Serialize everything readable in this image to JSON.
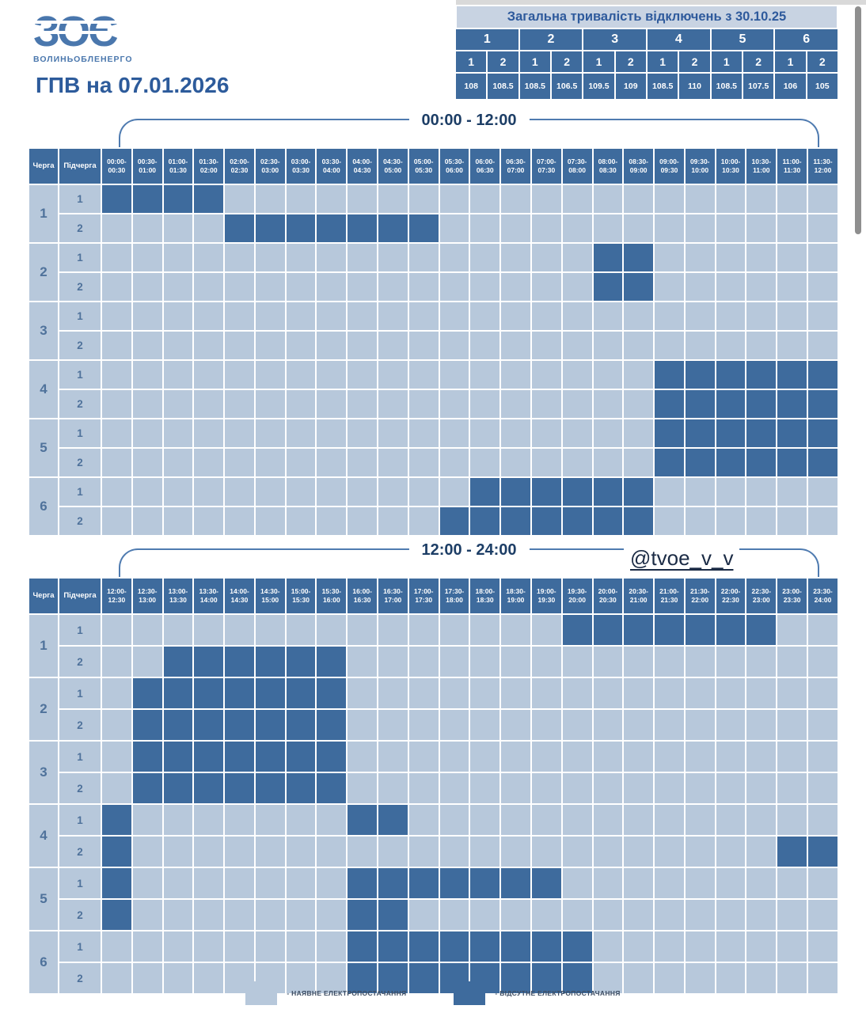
{
  "page": {
    "title": "ГПВ на 07.01.2026"
  },
  "logo": {
    "mark": "ЗОЄ",
    "company": "ВОЛИНЬОБЛЕНЕРГО"
  },
  "summary": {
    "title": "Загальна тривалість відключень з 30.10.25",
    "queues": [
      "1",
      "2",
      "3",
      "4",
      "5",
      "6"
    ],
    "subqueues": [
      "1",
      "2",
      "1",
      "2",
      "1",
      "2",
      "1",
      "2",
      "1",
      "2",
      "1",
      "2"
    ],
    "values": [
      "108",
      "108.5",
      "108.5",
      "106.5",
      "109.5",
      "109",
      "108.5",
      "110",
      "108.5",
      "107.5",
      "106",
      "105"
    ]
  },
  "watermark": "@tvoe_v_v",
  "schedule_headers": {
    "queue": "Черга",
    "subqueue": "Підчерга"
  },
  "tables": [
    {
      "title": "00:00 - 12:00",
      "slots": [
        "00:00-00:30",
        "00:30-01:00",
        "01:00-01:30",
        "01:30-02:00",
        "02:00-02:30",
        "02:30-03:00",
        "03:00-03:30",
        "03:30-04:00",
        "04:00-04:30",
        "04:30-05:00",
        "05:00-05:30",
        "05:30-06:00",
        "06:00-06:30",
        "06:30-07:00",
        "07:00-07:30",
        "07:30-08:00",
        "08:00-08:30",
        "08:30-09:00",
        "09:00-09:30",
        "09:30-10:00",
        "10:00-10:30",
        "10:30-11:00",
        "11:00-11:30",
        "11:30-12:00"
      ],
      "rows": [
        {
          "queue": "1",
          "sub": "1",
          "off": [
            0,
            1,
            2,
            3
          ]
        },
        {
          "queue": "1",
          "sub": "2",
          "off": [
            4,
            5,
            6,
            7,
            8,
            9,
            10
          ]
        },
        {
          "queue": "2",
          "sub": "1",
          "off": [
            16,
            17
          ]
        },
        {
          "queue": "2",
          "sub": "2",
          "off": [
            16,
            17
          ]
        },
        {
          "queue": "3",
          "sub": "1",
          "off": []
        },
        {
          "queue": "3",
          "sub": "2",
          "off": []
        },
        {
          "queue": "4",
          "sub": "1",
          "off": [
            18,
            19,
            20,
            21,
            22,
            23
          ]
        },
        {
          "queue": "4",
          "sub": "2",
          "off": [
            18,
            19,
            20,
            21,
            22,
            23
          ]
        },
        {
          "queue": "5",
          "sub": "1",
          "off": [
            18,
            19,
            20,
            21,
            22,
            23
          ]
        },
        {
          "queue": "5",
          "sub": "2",
          "off": [
            18,
            19,
            20,
            21,
            22,
            23
          ]
        },
        {
          "queue": "6",
          "sub": "1",
          "off": [
            12,
            13,
            14,
            15,
            16,
            17
          ]
        },
        {
          "queue": "6",
          "sub": "2",
          "off": [
            11,
            12,
            13,
            14,
            15,
            16,
            17
          ]
        }
      ]
    },
    {
      "title": "12:00 - 24:00",
      "slots": [
        "12:00-12:30",
        "12:30-13:00",
        "13:00-13:30",
        "13:30-14:00",
        "14:00-14:30",
        "14:30-15:00",
        "15:00-15:30",
        "15:30-16:00",
        "16:00-16:30",
        "16:30-17:00",
        "17:00-17:30",
        "17:30-18:00",
        "18:00-18:30",
        "18:30-19:00",
        "19:00-19:30",
        "19:30-20:00",
        "20:00-20:30",
        "20:30-21:00",
        "21:00-21:30",
        "21:30-22:00",
        "22:00-22:30",
        "22:30-23:00",
        "23:00-23:30",
        "23:30-24:00"
      ],
      "rows": [
        {
          "queue": "1",
          "sub": "1",
          "off": [
            15,
            16,
            17,
            18,
            19,
            20,
            21
          ]
        },
        {
          "queue": "1",
          "sub": "2",
          "off": [
            2,
            3,
            4,
            5,
            6,
            7
          ]
        },
        {
          "queue": "2",
          "sub": "1",
          "off": [
            1,
            2,
            3,
            4,
            5,
            6,
            7
          ]
        },
        {
          "queue": "2",
          "sub": "2",
          "off": [
            1,
            2,
            3,
            4,
            5,
            6,
            7
          ]
        },
        {
          "queue": "3",
          "sub": "1",
          "off": [
            1,
            2,
            3,
            4,
            5,
            6,
            7
          ]
        },
        {
          "queue": "3",
          "sub": "2",
          "off": [
            1,
            2,
            3,
            4,
            5,
            6,
            7
          ]
        },
        {
          "queue": "4",
          "sub": "1",
          "off": [
            0,
            8,
            9
          ]
        },
        {
          "queue": "4",
          "sub": "2",
          "off": [
            0,
            22,
            23
          ]
        },
        {
          "queue": "5",
          "sub": "1",
          "off": [
            0,
            8,
            9,
            10,
            11,
            12,
            13,
            14
          ]
        },
        {
          "queue": "5",
          "sub": "2",
          "off": [
            0,
            8,
            9
          ]
        },
        {
          "queue": "6",
          "sub": "1",
          "off": [
            8,
            9,
            10,
            11,
            12,
            13,
            14,
            15
          ]
        },
        {
          "queue": "6",
          "sub": "2",
          "off": [
            8,
            9,
            10,
            11,
            12,
            13,
            14,
            15
          ]
        }
      ]
    }
  ],
  "legend": [
    {
      "label": "- НАЯВНЕ ЕЛЕКТРОПОСТАЧАННЯ",
      "color": "#b7c8db"
    },
    {
      "label": "- ВІДСУТНЕ ЕЛЕКТРОПОСТАЧАННЯ",
      "color": "#3e6b9d"
    }
  ],
  "colors": {
    "accent": "#2d5b9b",
    "grid_line": "#ffffff",
    "queue_number": "#4f729b"
  }
}
